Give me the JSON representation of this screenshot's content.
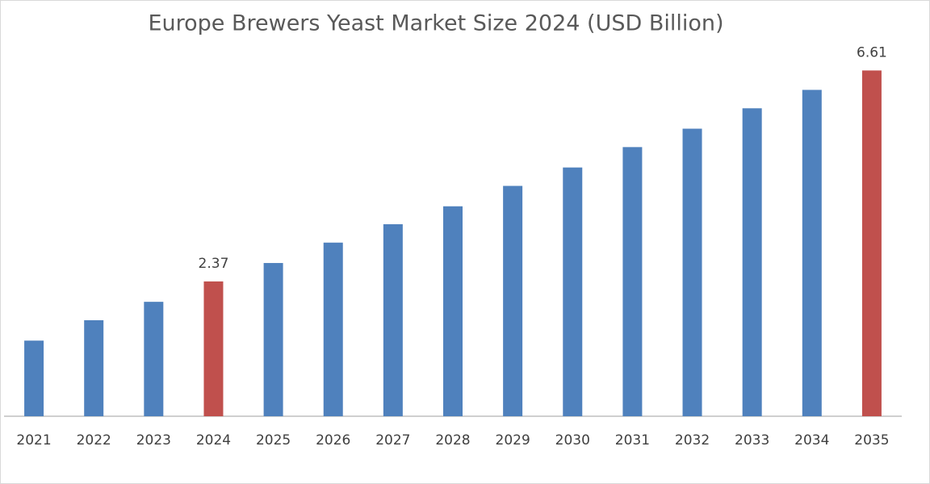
{
  "chart_data": {
    "type": "bar",
    "title": "Europe Brewers Yeast Market Size 2024 (USD Billion)",
    "categories": [
      "2021",
      "2022",
      "2023",
      "2024",
      "2025",
      "2026",
      "2027",
      "2028",
      "2029",
      "2030",
      "2031",
      "2032",
      "2033",
      "2034",
      "2035"
    ],
    "values": [
      1.18,
      1.59,
      1.96,
      2.37,
      2.74,
      3.15,
      3.52,
      3.88,
      4.29,
      4.66,
      5.07,
      5.44,
      5.85,
      6.22,
      6.61
    ],
    "value_labels": [
      null,
      null,
      null,
      "2.37",
      null,
      null,
      null,
      null,
      null,
      null,
      null,
      null,
      null,
      null,
      "6.61"
    ],
    "colors": [
      "#4f81bd",
      "#4f81bd",
      "#4f81bd",
      "#c0504d",
      "#4f81bd",
      "#4f81bd",
      "#4f81bd",
      "#4f81bd",
      "#4f81bd",
      "#4f81bd",
      "#4f81bd",
      "#4f81bd",
      "#4f81bd",
      "#4f81bd",
      "#c0504d"
    ],
    "ylim": [
      -0.34,
      7.07
    ]
  }
}
